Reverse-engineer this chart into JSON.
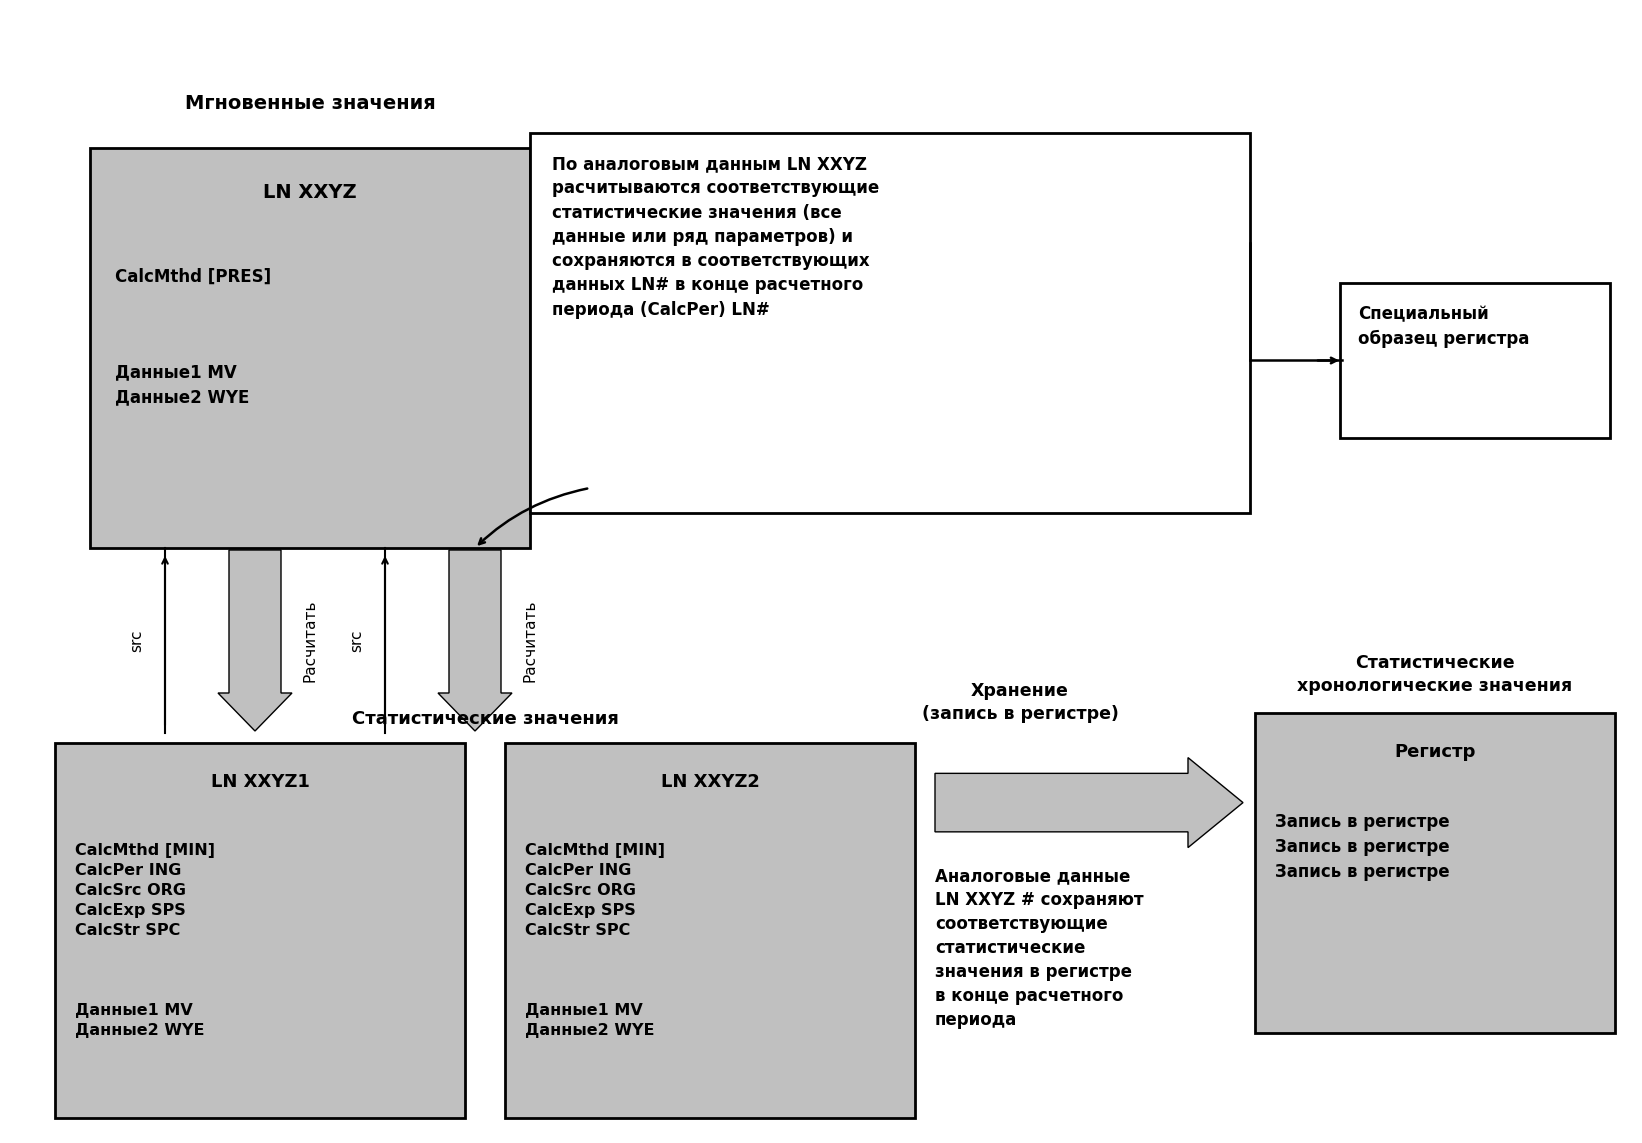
{
  "background_color": "#ffffff",
  "title_instant": "Мгновенные значения",
  "title_stat": "Статистические значения",
  "title_storage": "Хранение\n(запись в регистре)",
  "title_chrono": "Статистические\nхронологические значения",
  "desc_text": "По аналоговым данным LN XXYZ\nрасчитываются соответствующие\nстатистические значения (все\nданные или ряд параметров) и\nсохраняются в соответствующих\nданных LN# в конце расчетного\nпериода (CalcPer) LN#",
  "storage_text": "Аналоговые данные\nLN XXYZ # сохраняют\nсоответствующие\nстатистические\nзначения в регистре\nв конце расчетного\nпериода",
  "special_text": "Специальный\nобразец регистра",
  "src_label": "src",
  "calc_label": "Расчитать",
  "gray_fill": "#c0c0c0",
  "white_fill": "#ffffff",
  "box_edge": "#000000",
  "text_color": "#000000",
  "figw": 16.42,
  "figh": 11.43,
  "dpi": 100
}
